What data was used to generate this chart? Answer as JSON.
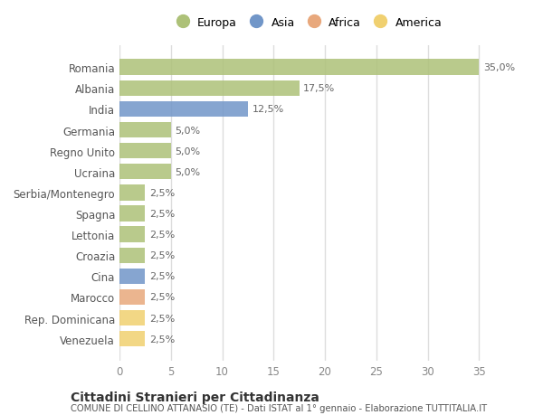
{
  "countries": [
    "Romania",
    "Albania",
    "India",
    "Germania",
    "Regno Unito",
    "Ucraina",
    "Serbia/Montenegro",
    "Spagna",
    "Lettonia",
    "Croazia",
    "Cina",
    "Marocco",
    "Rep. Dominicana",
    "Venezuela"
  ],
  "values": [
    35.0,
    17.5,
    12.5,
    5.0,
    5.0,
    5.0,
    2.5,
    2.5,
    2.5,
    2.5,
    2.5,
    2.5,
    2.5,
    2.5
  ],
  "labels": [
    "35,0%",
    "17,5%",
    "12,5%",
    "5,0%",
    "5,0%",
    "5,0%",
    "2,5%",
    "2,5%",
    "2,5%",
    "2,5%",
    "2,5%",
    "2,5%",
    "2,5%",
    "2,5%"
  ],
  "continents": [
    "Europa",
    "Europa",
    "Asia",
    "Europa",
    "Europa",
    "Europa",
    "Europa",
    "Europa",
    "Europa",
    "Europa",
    "Asia",
    "Africa",
    "America",
    "America"
  ],
  "colors": {
    "Europa": "#adc178",
    "Asia": "#7196c8",
    "Africa": "#e8a87c",
    "America": "#f0d070"
  },
  "legend_order": [
    "Europa",
    "Asia",
    "Africa",
    "America"
  ],
  "xlim": [
    0,
    37
  ],
  "xticks": [
    0,
    5,
    10,
    15,
    20,
    25,
    30,
    35
  ],
  "title1": "Cittadini Stranieri per Cittadinanza",
  "title2": "COMUNE DI CELLINO ATTANASIO (TE) - Dati ISTAT al 1° gennaio - Elaborazione TUTTITALIA.IT",
  "background_color": "#ffffff",
  "plot_bg_color": "#ffffff",
  "grid_color": "#dddddd",
  "bar_height": 0.75
}
